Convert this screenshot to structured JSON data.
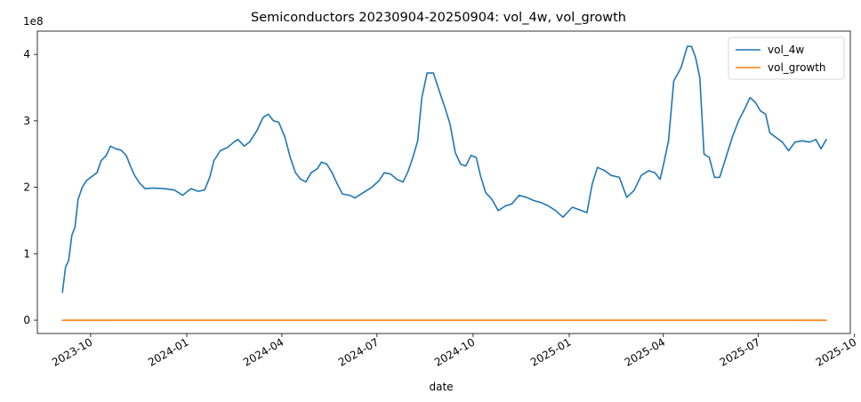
{
  "chart_data": {
    "type": "line",
    "title": "Semiconductors 20230904-20250904: vol_4w, vol_growth",
    "xlabel": "date",
    "ylabel": "",
    "y_offset_label": "1e8",
    "y_scale": 100000000,
    "xlim": [
      "2023-08-11",
      "2025-09-27"
    ],
    "ylim": [
      -20000000,
      435000000
    ],
    "yticks": [
      0,
      100000000,
      200000000,
      300000000,
      400000000
    ],
    "ytick_labels": [
      "0",
      "1",
      "2",
      "3",
      "4"
    ],
    "xticks": [
      "2023-10-01",
      "2024-01-01",
      "2024-04-01",
      "2024-07-01",
      "2024-10-01",
      "2025-01-01",
      "2025-04-01",
      "2025-07-01",
      "2025-10-01"
    ],
    "xtick_labels": [
      "2023-10",
      "2024-01",
      "2024-04",
      "2024-07",
      "2024-10",
      "2025-01",
      "2025-04",
      "2025-07",
      "2025-10"
    ],
    "legend_position": "top-right",
    "grid": false,
    "series": [
      {
        "name": "vol_4w",
        "color": "#1f77b4",
        "points": [
          [
            "2023-09-04",
            42000000
          ],
          [
            "2023-09-07",
            80000000
          ],
          [
            "2023-09-10",
            90000000
          ],
          [
            "2023-09-13",
            128000000
          ],
          [
            "2023-09-16",
            140000000
          ],
          [
            "2023-09-19",
            182000000
          ],
          [
            "2023-09-23",
            200000000
          ],
          [
            "2023-09-27",
            210000000
          ],
          [
            "2023-10-02",
            216000000
          ],
          [
            "2023-10-07",
            222000000
          ],
          [
            "2023-10-11",
            240000000
          ],
          [
            "2023-10-16",
            248000000
          ],
          [
            "2023-10-20",
            262000000
          ],
          [
            "2023-10-25",
            258000000
          ],
          [
            "2023-10-30",
            256000000
          ],
          [
            "2023-11-04",
            248000000
          ],
          [
            "2023-11-08",
            232000000
          ],
          [
            "2023-11-12",
            218000000
          ],
          [
            "2023-11-17",
            206000000
          ],
          [
            "2023-11-22",
            198000000
          ],
          [
            "2023-11-30",
            199000000
          ],
          [
            "2023-12-10",
            198000000
          ],
          [
            "2023-12-20",
            196000000
          ],
          [
            "2023-12-28",
            188000000
          ],
          [
            "2024-01-05",
            198000000
          ],
          [
            "2024-01-12",
            194000000
          ],
          [
            "2024-01-18",
            196000000
          ],
          [
            "2024-01-23",
            215000000
          ],
          [
            "2024-01-27",
            240000000
          ],
          [
            "2024-02-02",
            255000000
          ],
          [
            "2024-02-09",
            260000000
          ],
          [
            "2024-02-15",
            268000000
          ],
          [
            "2024-02-19",
            272000000
          ],
          [
            "2024-02-25",
            262000000
          ],
          [
            "2024-03-01",
            268000000
          ],
          [
            "2024-03-08",
            285000000
          ],
          [
            "2024-03-14",
            305000000
          ],
          [
            "2024-03-19",
            310000000
          ],
          [
            "2024-03-24",
            300000000
          ],
          [
            "2024-03-29",
            298000000
          ],
          [
            "2024-04-04",
            275000000
          ],
          [
            "2024-04-09",
            245000000
          ],
          [
            "2024-04-14",
            222000000
          ],
          [
            "2024-04-19",
            212000000
          ],
          [
            "2024-04-24",
            208000000
          ],
          [
            "2024-04-29",
            222000000
          ],
          [
            "2024-05-05",
            228000000
          ],
          [
            "2024-05-09",
            238000000
          ],
          [
            "2024-05-14",
            235000000
          ],
          [
            "2024-05-19",
            222000000
          ],
          [
            "2024-05-24",
            205000000
          ],
          [
            "2024-05-29",
            190000000
          ],
          [
            "2024-06-05",
            188000000
          ],
          [
            "2024-06-10",
            184000000
          ],
          [
            "2024-06-18",
            192000000
          ],
          [
            "2024-06-26",
            200000000
          ],
          [
            "2024-07-03",
            210000000
          ],
          [
            "2024-07-08",
            222000000
          ],
          [
            "2024-07-14",
            220000000
          ],
          [
            "2024-07-20",
            212000000
          ],
          [
            "2024-07-26",
            208000000
          ],
          [
            "2024-07-31",
            225000000
          ],
          [
            "2024-08-05",
            248000000
          ],
          [
            "2024-08-09",
            270000000
          ],
          [
            "2024-08-13",
            335000000
          ],
          [
            "2024-08-18",
            372000000
          ],
          [
            "2024-08-24",
            372000000
          ],
          [
            "2024-08-29",
            348000000
          ],
          [
            "2024-09-04",
            320000000
          ],
          [
            "2024-09-09",
            295000000
          ],
          [
            "2024-09-14",
            252000000
          ],
          [
            "2024-09-19",
            235000000
          ],
          [
            "2024-09-24",
            232000000
          ],
          [
            "2024-09-29",
            248000000
          ],
          [
            "2024-10-04",
            245000000
          ],
          [
            "2024-10-08",
            218000000
          ],
          [
            "2024-10-13",
            192000000
          ],
          [
            "2024-10-19",
            182000000
          ],
          [
            "2024-10-25",
            165000000
          ],
          [
            "2024-11-01",
            172000000
          ],
          [
            "2024-11-07",
            175000000
          ],
          [
            "2024-11-14",
            188000000
          ],
          [
            "2024-11-21",
            185000000
          ],
          [
            "2024-11-28",
            180000000
          ],
          [
            "2024-12-05",
            177000000
          ],
          [
            "2024-12-12",
            172000000
          ],
          [
            "2024-12-19",
            165000000
          ],
          [
            "2024-12-26",
            155000000
          ],
          [
            "2025-01-04",
            170000000
          ],
          [
            "2025-01-11",
            166000000
          ],
          [
            "2025-01-18",
            162000000
          ],
          [
            "2025-01-23",
            205000000
          ],
          [
            "2025-01-28",
            230000000
          ],
          [
            "2025-02-04",
            225000000
          ],
          [
            "2025-02-10",
            218000000
          ],
          [
            "2025-02-18",
            215000000
          ],
          [
            "2025-02-25",
            185000000
          ],
          [
            "2025-03-04",
            195000000
          ],
          [
            "2025-03-11",
            218000000
          ],
          [
            "2025-03-18",
            225000000
          ],
          [
            "2025-03-24",
            222000000
          ],
          [
            "2025-03-29",
            212000000
          ],
          [
            "2025-04-02",
            240000000
          ],
          [
            "2025-04-06",
            270000000
          ],
          [
            "2025-04-11",
            360000000
          ],
          [
            "2025-04-18",
            380000000
          ],
          [
            "2025-04-24",
            412000000
          ],
          [
            "2025-04-28",
            412000000
          ],
          [
            "2025-05-02",
            395000000
          ],
          [
            "2025-05-06",
            365000000
          ],
          [
            "2025-05-10",
            250000000
          ],
          [
            "2025-05-15",
            245000000
          ],
          [
            "2025-05-20",
            215000000
          ],
          [
            "2025-05-25",
            215000000
          ],
          [
            "2025-05-31",
            245000000
          ],
          [
            "2025-06-06",
            275000000
          ],
          [
            "2025-06-12",
            300000000
          ],
          [
            "2025-06-18",
            318000000
          ],
          [
            "2025-06-23",
            335000000
          ],
          [
            "2025-06-28",
            328000000
          ],
          [
            "2025-07-03",
            315000000
          ],
          [
            "2025-07-08",
            310000000
          ],
          [
            "2025-07-12",
            282000000
          ],
          [
            "2025-07-18",
            275000000
          ],
          [
            "2025-07-24",
            268000000
          ],
          [
            "2025-07-30",
            255000000
          ],
          [
            "2025-08-05",
            268000000
          ],
          [
            "2025-08-12",
            270000000
          ],
          [
            "2025-08-19",
            268000000
          ],
          [
            "2025-08-25",
            272000000
          ],
          [
            "2025-08-30",
            258000000
          ],
          [
            "2025-09-04",
            272000000
          ]
        ]
      },
      {
        "name": "vol_growth",
        "color": "#ff7f0e",
        "points": [
          [
            "2023-09-04",
            0
          ],
          [
            "2025-09-04",
            0
          ]
        ]
      }
    ]
  }
}
